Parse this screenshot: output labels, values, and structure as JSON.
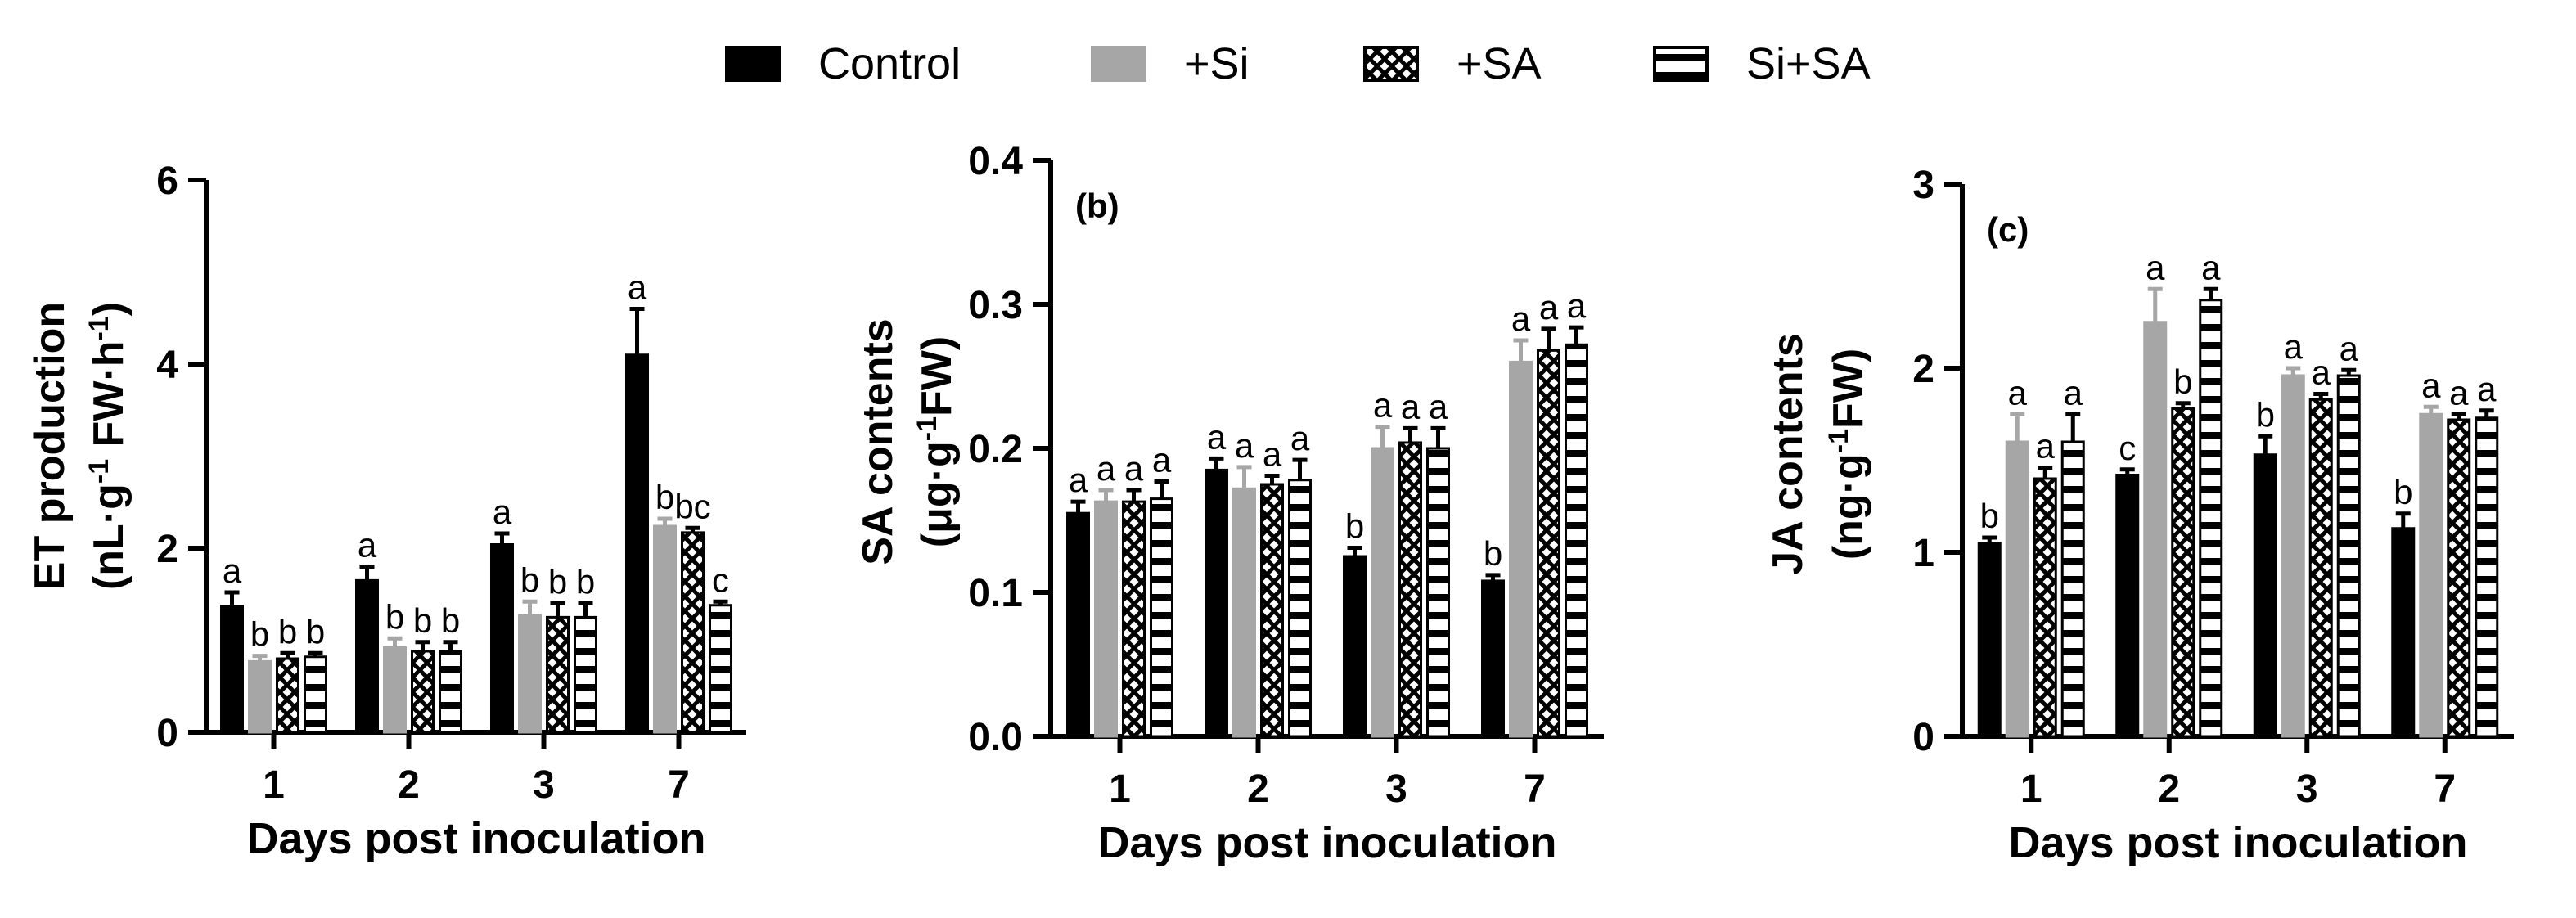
{
  "legend": [
    {
      "name": "Control",
      "style": "black"
    },
    {
      "name": "+Si",
      "style": "gray"
    },
    {
      "name": "+SA",
      "style": "check"
    },
    {
      "name": "Si+SA",
      "style": "stripe"
    }
  ],
  "colors": {
    "control": "#000000",
    "si": "#a6a6a6",
    "stroke": "#000000"
  },
  "chart_data": [
    {
      "type": "bar",
      "panel_label": "",
      "title": "",
      "xlabel": "Days post inoculation",
      "ylabel_line1": "ET  production",
      "ylabel_line2": {
        "a": "(nL·g",
        "sup1": "-1",
        "b": " FW·h",
        "sup2": "-1",
        "c": ")"
      },
      "ylim": [
        0,
        6
      ],
      "yticks": [
        0,
        2,
        4,
        6
      ],
      "ytick_labels": [
        "0",
        "2",
        "4",
        "6"
      ],
      "categories": [
        "1",
        "2",
        "3",
        "7"
      ],
      "series": [
        {
          "name": "Control",
          "values": [
            1.37,
            1.65,
            2.04,
            4.1
          ],
          "errors": [
            0.15,
            0.15,
            0.12,
            0.5
          ],
          "labels": [
            "a",
            "a",
            "a",
            "a"
          ]
        },
        {
          "name": "+Si",
          "values": [
            0.77,
            0.92,
            1.27,
            2.24
          ],
          "errors": [
            0.06,
            0.1,
            0.15,
            0.08
          ],
          "labels": [
            "b",
            "b",
            "b",
            "b"
          ]
        },
        {
          "name": "+SA",
          "values": [
            0.8,
            0.88,
            1.25,
            2.17
          ],
          "errors": [
            0.06,
            0.1,
            0.15,
            0.05
          ],
          "labels": [
            "b",
            "b",
            "b",
            "bc"
          ]
        },
        {
          "name": "Si+SA",
          "values": [
            0.82,
            0.88,
            1.25,
            1.38
          ],
          "errors": [
            0.04,
            0.1,
            0.15,
            0.04
          ],
          "labels": [
            "b",
            "b",
            "b",
            "c"
          ]
        }
      ]
    },
    {
      "type": "bar",
      "panel_label": "(b)",
      "title": "",
      "xlabel": "Days post inoculation",
      "ylabel_line1": "SA contents",
      "ylabel_line2": {
        "a": "(μg·g",
        "sup1": "-1",
        "b": "FW)",
        "sup2": "",
        "c": ""
      },
      "ylim": [
        0,
        0.4
      ],
      "yticks": [
        0,
        0.1,
        0.2,
        0.3,
        0.4
      ],
      "ytick_labels": [
        "0.0",
        "0.1",
        "0.2",
        "0.3",
        "0.4"
      ],
      "categories": [
        "1",
        "2",
        "3",
        "7"
      ],
      "series": [
        {
          "name": "Control",
          "values": [
            0.155,
            0.185,
            0.125,
            0.108
          ],
          "errors": [
            0.008,
            0.008,
            0.006,
            0.004
          ],
          "labels": [
            "a",
            "a",
            "b",
            "b"
          ]
        },
        {
          "name": "+Si",
          "values": [
            0.163,
            0.172,
            0.2,
            0.26
          ],
          "errors": [
            0.008,
            0.015,
            0.015,
            0.015
          ],
          "labels": [
            "a",
            "a",
            "a",
            "a"
          ]
        },
        {
          "name": "+SA",
          "values": [
            0.163,
            0.175,
            0.204,
            0.268
          ],
          "errors": [
            0.008,
            0.006,
            0.01,
            0.015
          ],
          "labels": [
            "a",
            "a",
            "a",
            "a"
          ]
        },
        {
          "name": "Si+SA",
          "values": [
            0.165,
            0.178,
            0.2,
            0.272
          ],
          "errors": [
            0.012,
            0.014,
            0.014,
            0.012
          ],
          "labels": [
            "a",
            "a",
            "a",
            "a"
          ]
        }
      ]
    },
    {
      "type": "bar",
      "panel_label": "(c)",
      "title": "",
      "xlabel": "Days post inoculation",
      "ylabel_line1": "JA contents",
      "ylabel_line2": {
        "a": "(ng·g",
        "sup1": "-1",
        "b": "FW)",
        "sup2": "",
        "c": ""
      },
      "ylim": [
        0,
        3
      ],
      "yticks": [
        0,
        1,
        2,
        3
      ],
      "ytick_labels": [
        "0",
        "1",
        "2",
        "3"
      ],
      "categories": [
        "1",
        "2",
        "3",
        "7"
      ],
      "series": [
        {
          "name": "Control",
          "values": [
            1.05,
            1.42,
            1.53,
            1.13
          ],
          "errors": [
            0.03,
            0.03,
            0.1,
            0.08
          ],
          "labels": [
            "b",
            "c",
            "b",
            "b"
          ]
        },
        {
          "name": "+Si",
          "values": [
            1.6,
            2.25,
            1.96,
            1.75
          ],
          "errors": [
            0.15,
            0.18,
            0.04,
            0.04
          ],
          "labels": [
            "a",
            "a",
            "a",
            "a"
          ]
        },
        {
          "name": "+SA",
          "values": [
            1.4,
            1.78,
            1.83,
            1.72
          ],
          "errors": [
            0.06,
            0.03,
            0.03,
            0.03
          ],
          "labels": [
            "a",
            "b",
            "a",
            "a"
          ]
        },
        {
          "name": "Si+SA",
          "values": [
            1.6,
            2.37,
            1.96,
            1.73
          ],
          "errors": [
            0.15,
            0.06,
            0.03,
            0.04
          ],
          "labels": [
            "a",
            "a",
            "a",
            "a"
          ]
        }
      ]
    }
  ]
}
